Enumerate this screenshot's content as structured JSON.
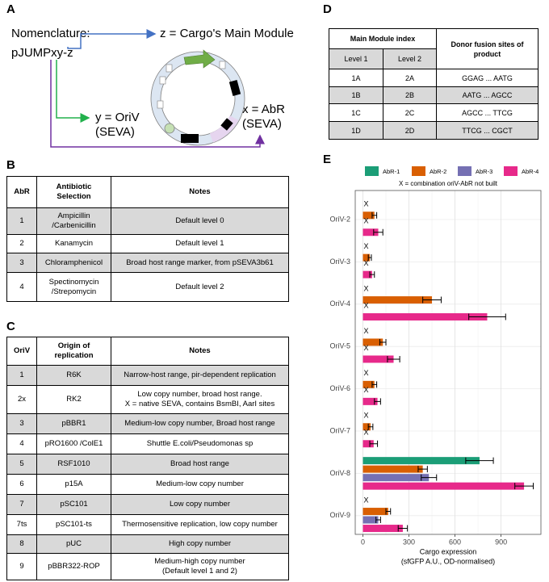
{
  "panel_a": {
    "label": "A",
    "nomenclature": "Nomenclature:",
    "name": "pJUMPxy-z",
    "z": "z = Cargo's Main Module",
    "y": [
      "y = OriV",
      "(SEVA)"
    ],
    "x": [
      "x = AbR",
      "(SEVA)"
    ]
  },
  "table_b": {
    "label": "B",
    "header": [
      "AbR",
      [
        "Antibiotic",
        "Selection"
      ],
      "Notes"
    ],
    "rows": [
      [
        "1",
        [
          "Ampicillin",
          "/Carbenicillin"
        ],
        "Default level 0"
      ],
      [
        "2",
        "Kanamycin",
        "Default level 1"
      ],
      [
        "3",
        "Chloramphenicol",
        "Broad host range marker, from pSEVA3b61"
      ],
      [
        "4",
        [
          "Spectinomycin",
          "/Strepomycin"
        ],
        "Default level 2"
      ]
    ],
    "shaded_rows": [
      0,
      2
    ]
  },
  "table_c": {
    "label": "C",
    "header": [
      "OriV",
      [
        "Origin of",
        "replication"
      ],
      "Notes"
    ],
    "rows": [
      [
        "1",
        "R6K",
        "Narrow-host range, pir-dependent replication"
      ],
      [
        "2x",
        "RK2",
        [
          "Low copy number, broad host range.",
          "X = native SEVA, contains BsmBI, AarI sites"
        ]
      ],
      [
        "3",
        "pBBR1",
        "Medium-low copy number, Broad host range"
      ],
      [
        "4",
        "pRO1600 /ColE1",
        "Shuttle E.coli/Pseudomonas sp"
      ],
      [
        "5",
        "RSF1010",
        "Broad host range"
      ],
      [
        "6",
        "p15A",
        "Medium-low copy number"
      ],
      [
        "7",
        "pSC101",
        "Low copy number"
      ],
      [
        "7ts",
        "pSC101-ts",
        "Thermosensitive replication, low copy number"
      ],
      [
        "8",
        "pUC",
        "High copy number"
      ],
      [
        "9",
        "pBBR322-ROP",
        [
          "Medium-high copy number",
          "(Default level 1 and 2)"
        ]
      ]
    ],
    "shaded_rows": [
      0,
      2,
      4,
      6,
      8
    ]
  },
  "table_d": {
    "label": "D",
    "group_header": "Main Module index",
    "subheader": [
      "Level 1",
      "Level 2"
    ],
    "last_header": [
      "Donor fusion sites of",
      "product"
    ],
    "rows": [
      [
        "1A",
        "2A",
        "GGAG ... AATG"
      ],
      [
        "1B",
        "2B",
        "AATG ... AGCC"
      ],
      [
        "1C",
        "2C",
        "AGCC ... TTCG"
      ],
      [
        "1D",
        "2D",
        "TTCG ... CGCT"
      ]
    ],
    "shaded_rows": [
      1,
      3
    ]
  },
  "chart_data": {
    "type": "bar",
    "orientation": "horizontal",
    "label": "E",
    "note": "X = combination oriV-AbR not built",
    "missing_label": "X",
    "xlabel": [
      "Cargo expression",
      "(sfGFP A.U., OD-normalised)"
    ],
    "categories": [
      "OriV-2",
      "OriV-3",
      "OriV-4",
      "OriV-5",
      "OriV-6",
      "OriV-7",
      "OriV-8",
      "OriV-9"
    ],
    "series": [
      {
        "name": "AbR-1",
        "color": "#1b9e77",
        "values": [
          null,
          null,
          null,
          null,
          null,
          null,
          760,
          null
        ],
        "errors": [
          null,
          null,
          null,
          null,
          null,
          null,
          90,
          null
        ]
      },
      {
        "name": "AbR-2",
        "color": "#d95f02",
        "values": [
          75,
          45,
          450,
          130,
          75,
          50,
          390,
          165
        ],
        "errors": [
          15,
          10,
          60,
          20,
          15,
          15,
          30,
          15
        ]
      },
      {
        "name": "AbR-3",
        "color": "#7570b3",
        "values": [
          null,
          null,
          null,
          null,
          null,
          null,
          430,
          100
        ],
        "errors": [
          null,
          null,
          null,
          null,
          null,
          null,
          50,
          15
        ]
      },
      {
        "name": "AbR-4",
        "color": "#e7298a",
        "values": [
          100,
          60,
          810,
          200,
          95,
          70,
          1050,
          260
        ],
        "errors": [
          30,
          15,
          120,
          40,
          20,
          25,
          60,
          30
        ]
      }
    ],
    "xlim": [
      -50,
      1160
    ],
    "xticks": [
      0,
      300,
      600,
      900
    ],
    "grid": true,
    "legend": "top"
  }
}
